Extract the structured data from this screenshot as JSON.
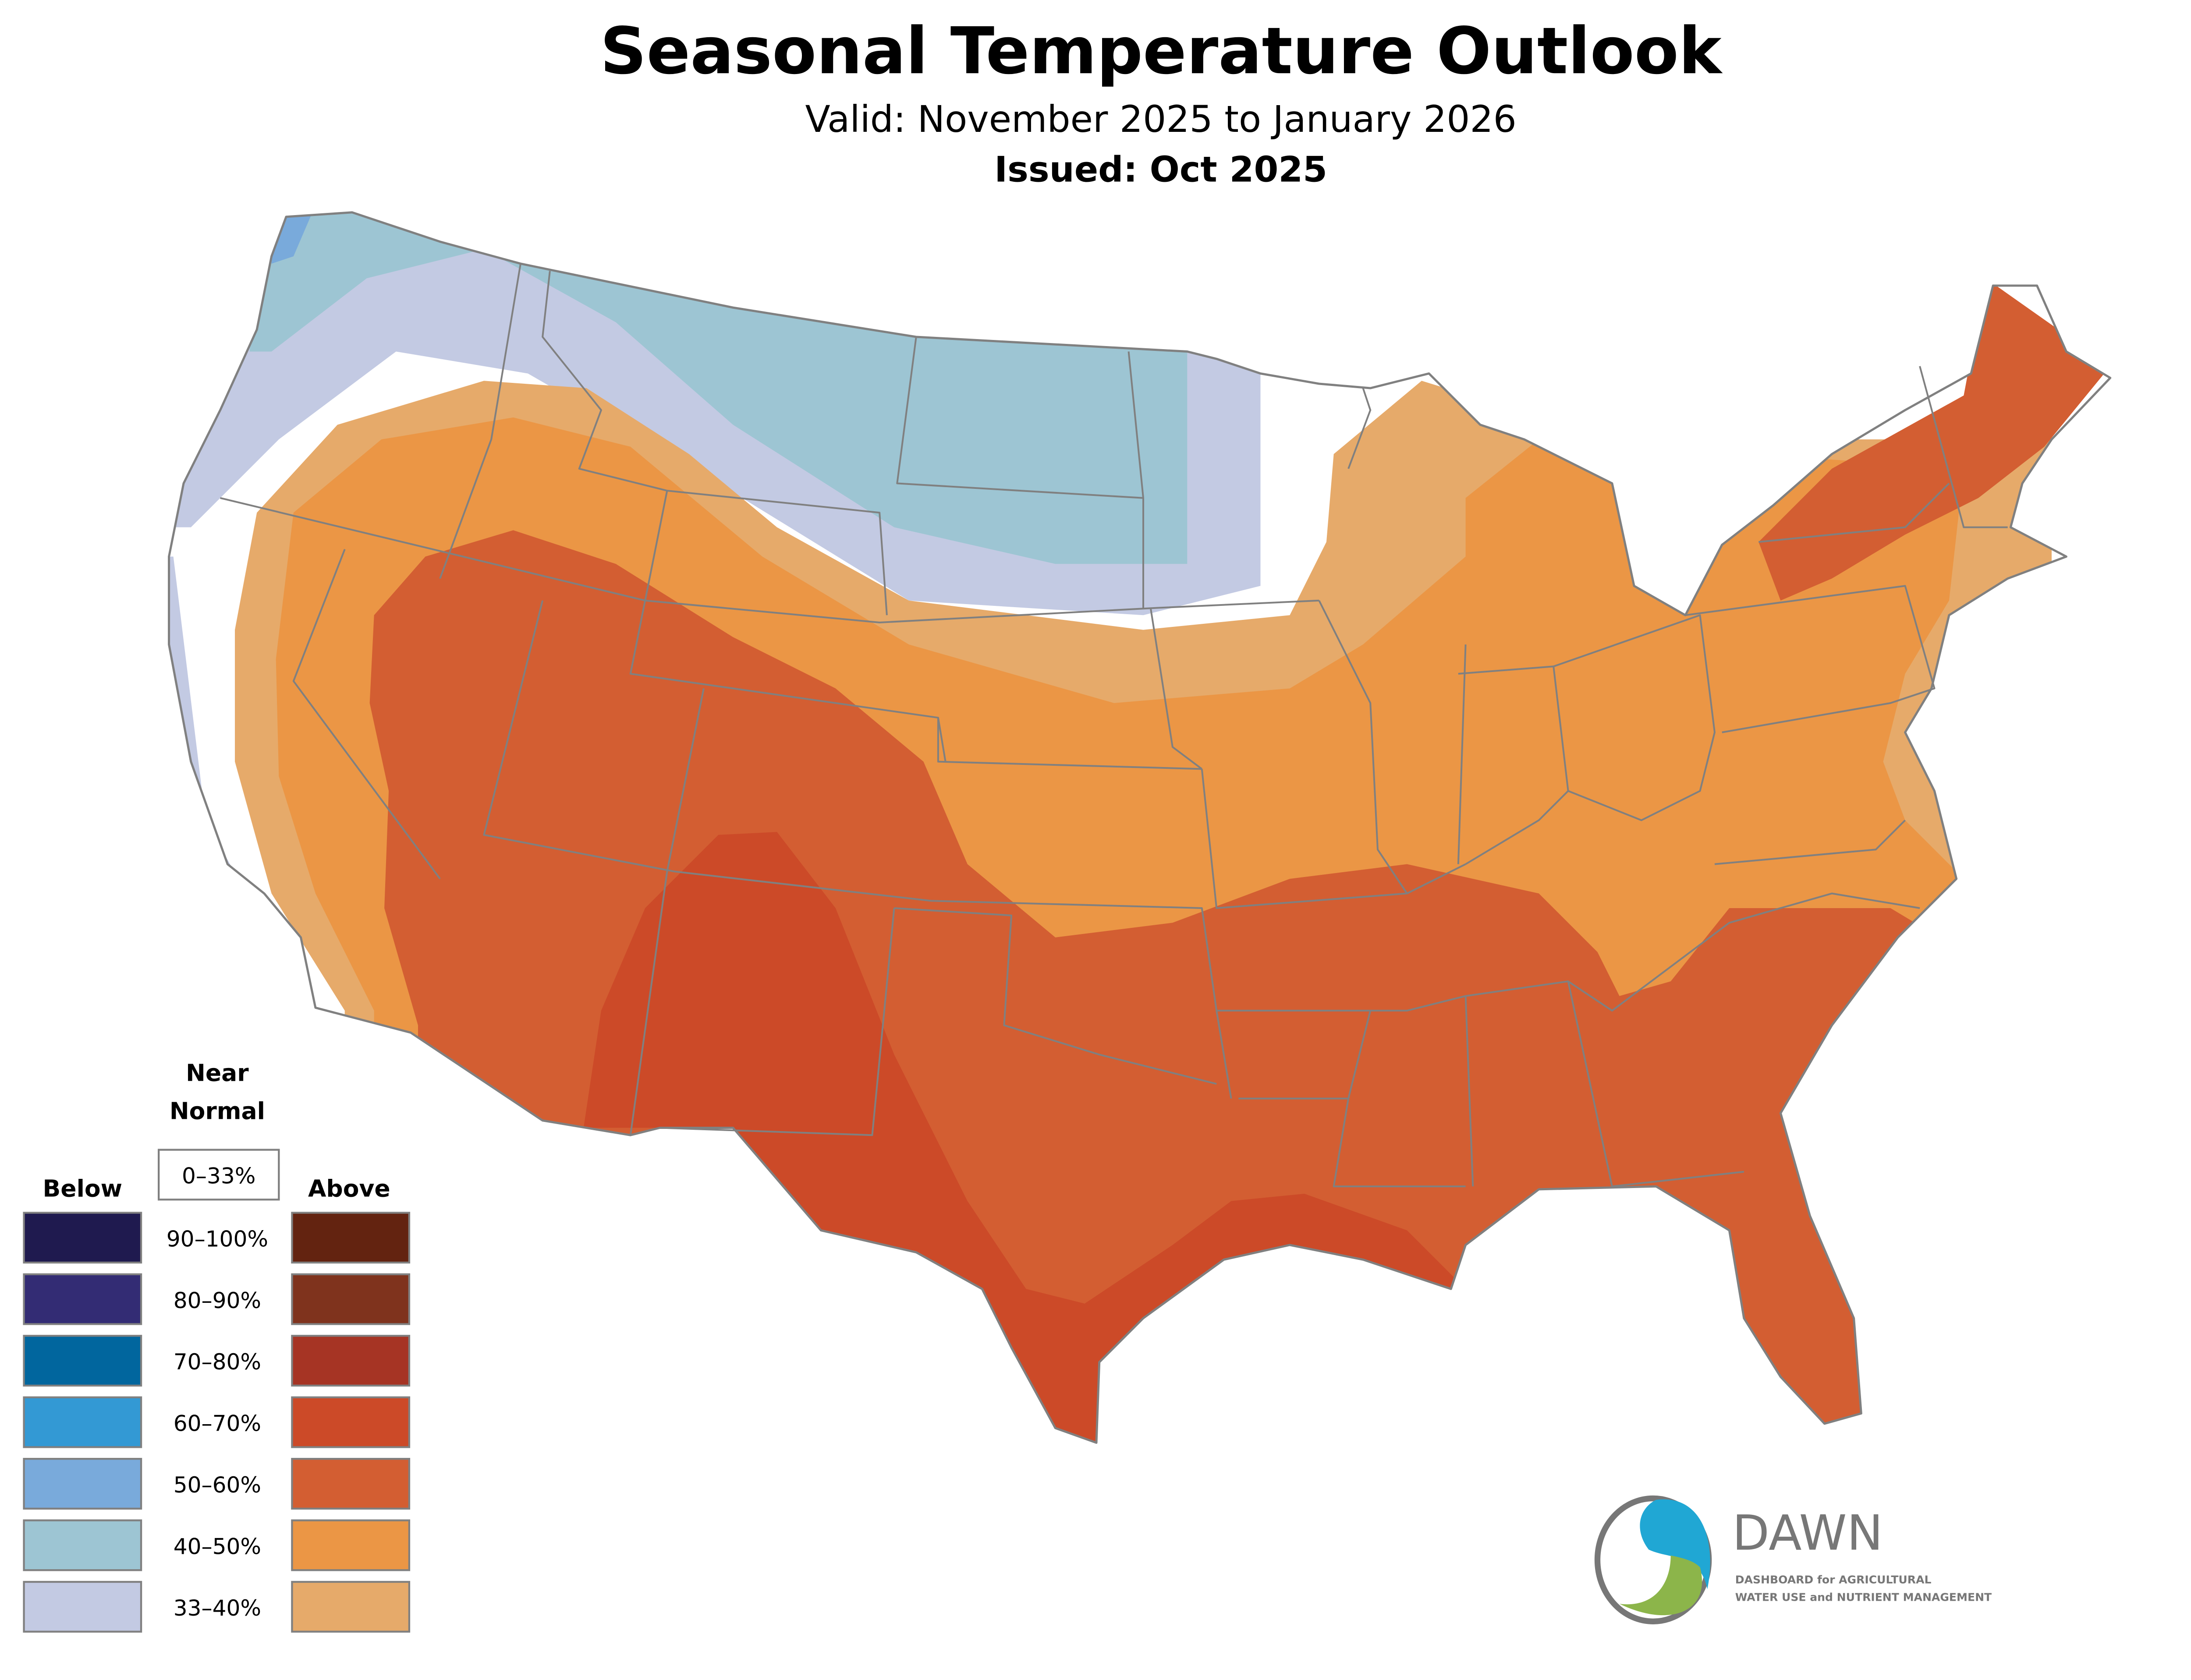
{
  "title": "Seasonal Temperature Outlook",
  "subtitle": "Valid: November 2025 to January 2026",
  "issued": "Issued: Oct 2025",
  "legend": {
    "near_normal_line1": "Near",
    "near_normal_line2": "Normal",
    "near_normal_range": "0–33%",
    "below_label": "Below",
    "above_label": "Above",
    "ranges": [
      "90–100%",
      "80–90%",
      "70–80%",
      "60–70%",
      "50–60%",
      "40–50%",
      "33–40%"
    ],
    "below_colors": [
      "#1f1a4f",
      "#332c74",
      "#01669e",
      "#3399d4",
      "#79aadb",
      "#9dc5d3",
      "#c3cae3"
    ],
    "above_colors": [
      "#632310",
      "#7f331d",
      "#a63424",
      "#cc4a28",
      "#d35e32",
      "#eb9645",
      "#e6aa6a"
    ]
  },
  "logo": {
    "name": "DAWN",
    "tagline_line1": "DASHBOARD for AGRICULTURAL",
    "tagline_line2": "WATER USE and NUTRIENT MANAGEMENT",
    "colors": {
      "blue": "#20a7d4",
      "green": "#8cb54a",
      "gray": "#777777"
    }
  }
}
